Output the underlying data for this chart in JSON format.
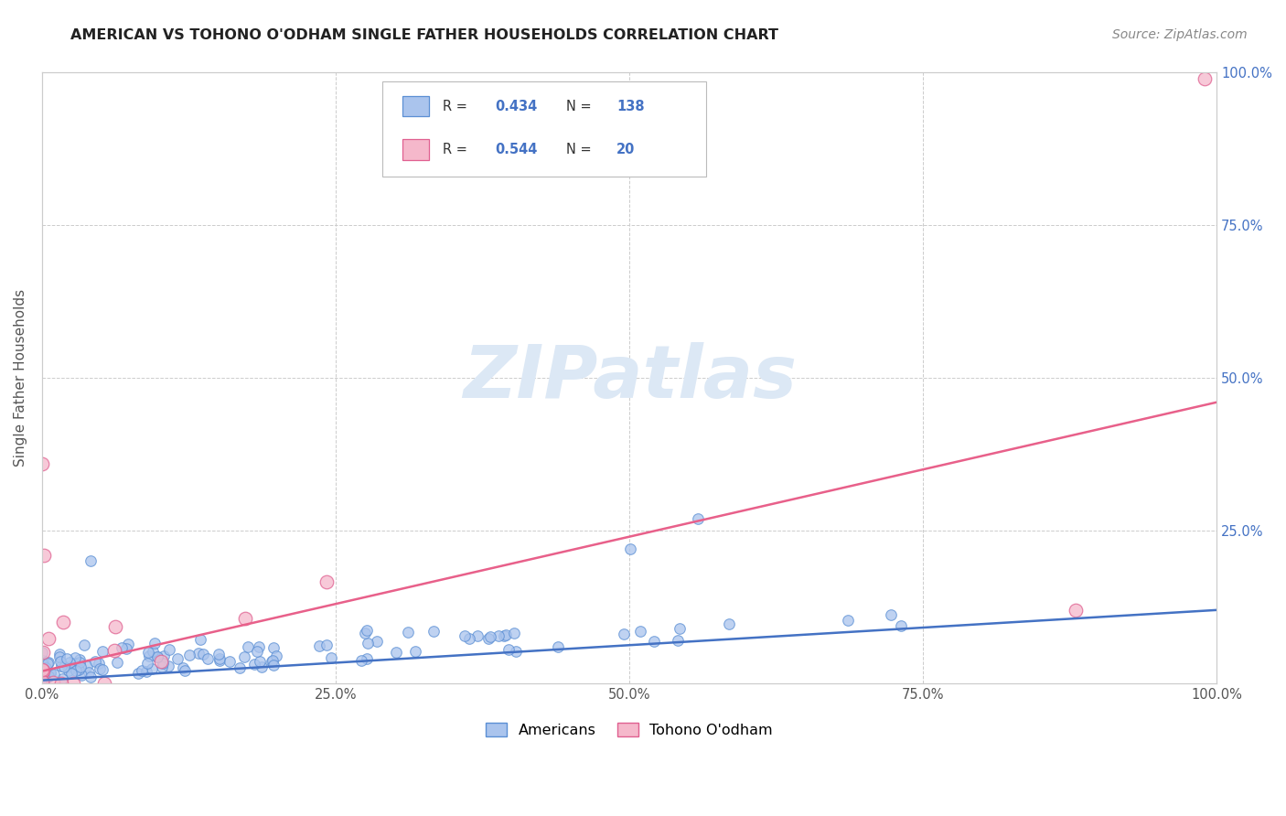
{
  "title": "AMERICAN VS TOHONO O'ODHAM SINGLE FATHER HOUSEHOLDS CORRELATION CHART",
  "source": "Source: ZipAtlas.com",
  "ylabel": "Single Father Households",
  "american_color": "#aac4ed",
  "american_edge_color": "#5b8fd4",
  "american_line_color": "#4472c4",
  "tohono_color": "#f5b8cb",
  "tohono_edge_color": "#e06090",
  "tohono_line_color": "#e8608a",
  "background_color": "#ffffff",
  "grid_color": "#cccccc",
  "watermark_color": "#dce8f5",
  "right_tick_color": "#4472c4",
  "title_color": "#222222",
  "source_color": "#888888",
  "legend_R_color": "#4472c4",
  "legend_text_color": "#333333",
  "american_slope": 0.115,
  "american_intercept": 0.005,
  "tohono_slope": 0.44,
  "tohono_intercept": 0.02
}
